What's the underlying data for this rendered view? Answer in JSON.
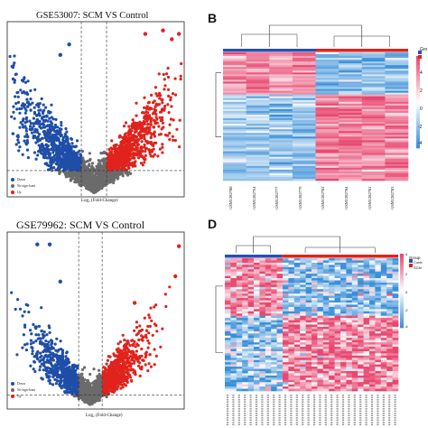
{
  "panels": {
    "A": {
      "title": "GSE53007: SCM VS Control",
      "xlabel": "Log₂ (Fold-Change)",
      "legend": [
        {
          "label": "Down",
          "color": "#1f4ea8"
        },
        {
          "label": "No-sign-fcant",
          "color": "#6b6b6b"
        },
        {
          "label": "Up",
          "color": "#e0231c"
        }
      ]
    },
    "B": {
      "letter": "B",
      "legend_title": "Gro",
      "scale_ticks": [
        "4",
        "2",
        "0",
        "-2",
        "-4"
      ],
      "samples": [
        "GSM1282780",
        "GSM1282764",
        "GSM1282777",
        "GSM1282779",
        "GSM1282782",
        "GSM1282784",
        "GSM1282781",
        "GSM1282783"
      ]
    },
    "C": {
      "title": "GSE79962: SCM VS Control",
      "xlabel": "Log₂ (Fold-Change)",
      "legend": [
        {
          "label": "Down",
          "color": "#1f4ea8"
        },
        {
          "label": "No-sign-fcant",
          "color": "#6b6b6b"
        },
        {
          "label": "Up",
          "color": "#e0231c"
        }
      ]
    },
    "D": {
      "letter": "D",
      "legend_title": "Group",
      "legend_items": [
        "Contr",
        "SCM"
      ],
      "scale_ticks": [
        "4",
        "2",
        "0",
        "-2",
        "-4"
      ]
    }
  },
  "colors": {
    "down": "#1f4ea8",
    "ns": "#6b6b6b",
    "up": "#e0231c",
    "heat_high": "#e8476f",
    "heat_low": "#3a8fd8",
    "group_control": "#2a4fb0",
    "group_scm": "#e0231c"
  }
}
